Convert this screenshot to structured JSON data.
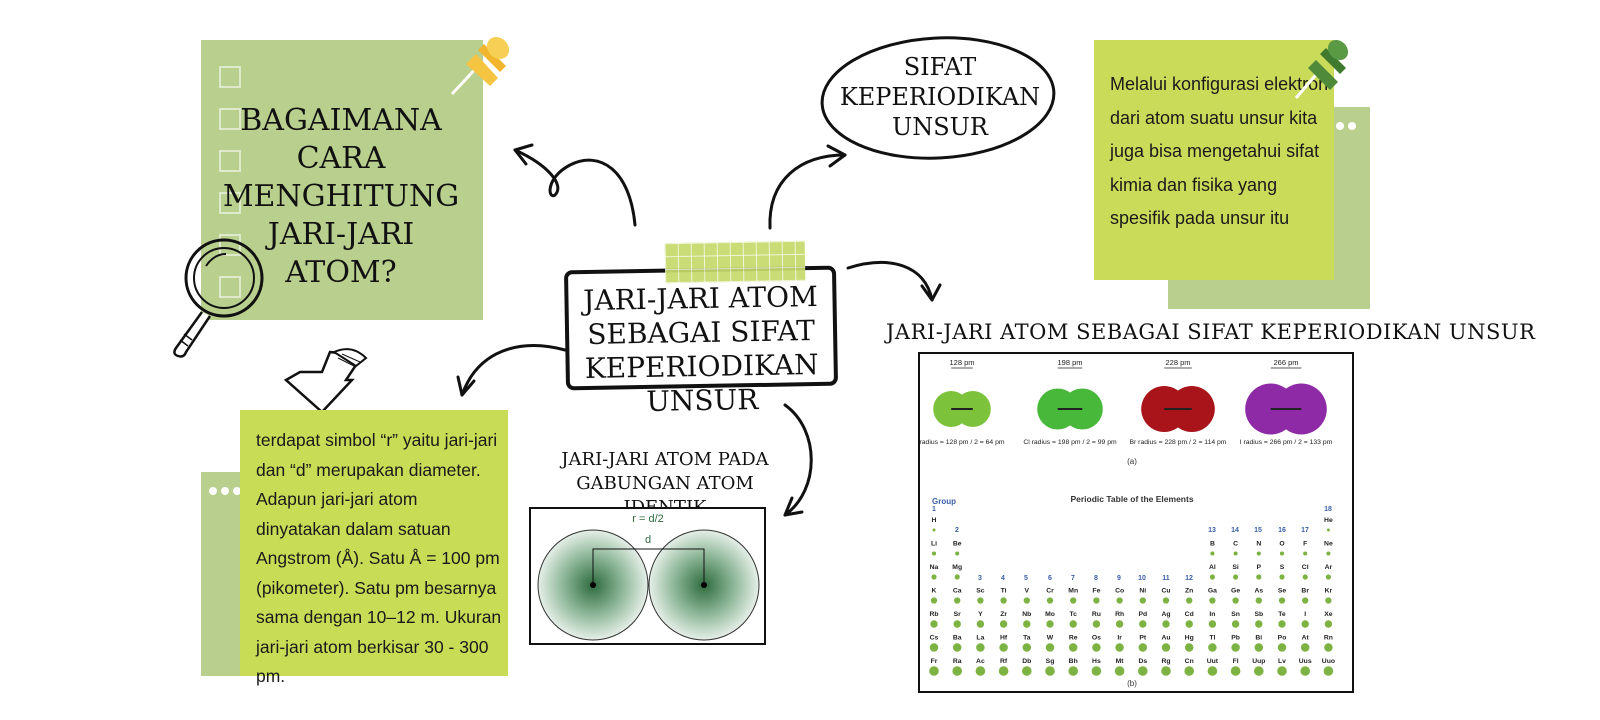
{
  "question_note": {
    "text": "BAGAIMANA CARA MENGHITUNG JARI-JARI ATOM?"
  },
  "center": {
    "title": "JARI-JARI ATOM SEBAGAI SIFAT KEPERIODIKAN UNSUR"
  },
  "oval": {
    "title": "SIFAT KEPERIODIKAN UNSUR"
  },
  "right_note": {
    "text": "Melalui konfigurasi elektron dari atom suatu unsur kita juga bisa mengetahui sifat kimia dan fisika yang spesifik pada unsur itu"
  },
  "periodic_section": {
    "heading": "JARI-JARI ATOM SEBAGAI SIFAT KEPERIODIKAN UNSUR",
    "molecules": [
      {
        "bond": "128 pm",
        "label": "radius = 128 pm / 2 = 64 pm",
        "color": "#7cc23a"
      },
      {
        "bond": "198 pm",
        "label": "Cl radius = 198 pm / 2 = 99 pm",
        "color": "#48b83a"
      },
      {
        "bond": "228 pm",
        "label": "Br radius = 228 pm / 2 = 114 pm",
        "color": "#a8141a"
      },
      {
        "bond": "266 pm",
        "label": "I radius = 266 pm / 2 = 133 pm",
        "color": "#8e2aa6"
      }
    ],
    "caption_a": "(a)",
    "table_title": "Periodic Table of the Elements",
    "group_label": "Group",
    "caption_b": "(b)",
    "rows": [
      [
        "H",
        "",
        "",
        "",
        "",
        "",
        "",
        "",
        "",
        "",
        "",
        "",
        "",
        "",
        "",
        "",
        "",
        "He"
      ],
      [
        "Li",
        "Be",
        "",
        "",
        "",
        "",
        "",
        "",
        "",
        "",
        "",
        "",
        "B",
        "C",
        "N",
        "O",
        "F",
        "Ne"
      ],
      [
        "Na",
        "Mg",
        "",
        "",
        "",
        "",
        "",
        "",
        "",
        "",
        "",
        "",
        "Al",
        "Si",
        "P",
        "S",
        "Cl",
        "Ar"
      ],
      [
        "K",
        "Ca",
        "Sc",
        "Ti",
        "V",
        "Cr",
        "Mn",
        "Fe",
        "Co",
        "Ni",
        "Cu",
        "Zn",
        "Ga",
        "Ge",
        "As",
        "Se",
        "Br",
        "Kr"
      ],
      [
        "Rb",
        "Sr",
        "Y",
        "Zr",
        "Nb",
        "Mo",
        "Tc",
        "Ru",
        "Rh",
        "Pd",
        "Ag",
        "Cd",
        "In",
        "Sn",
        "Sb",
        "Te",
        "I",
        "Xe"
      ],
      [
        "Cs",
        "Ba",
        "La",
        "Hf",
        "Ta",
        "W",
        "Re",
        "Os",
        "Ir",
        "Pt",
        "Au",
        "Hg",
        "Tl",
        "Pb",
        "Bi",
        "Po",
        "At",
        "Rn"
      ],
      [
        "Fr",
        "Ra",
        "Ac",
        "Rf",
        "Db",
        "Sg",
        "Bh",
        "Hs",
        "Mt",
        "Ds",
        "Rg",
        "Cn",
        "Uut",
        "Fl",
        "Uup",
        "Lv",
        "Uus",
        "Uuo"
      ]
    ],
    "group_numbers": [
      "1",
      "2",
      "3",
      "4",
      "5",
      "6",
      "7",
      "8",
      "9",
      "10",
      "11",
      "12",
      "13",
      "14",
      "15",
      "16",
      "17",
      "18"
    ]
  },
  "bottom_note": {
    "text": "terdapat simbol “r” yaitu jari-jari dan “d” merupakan diameter. Adapun jari-jari atom dinyatakan dalam satuan Angstrom (Å). Satu Å = 100 pm (pikometer). Satu pm besarnya sama dengan 10–12 m. Ukuran jari-jari atom berkisar 30 - 300 pm."
  },
  "diagram": {
    "heading": "JARI-JARI ATOM PADA GABUNGAN ATOM IDENTIK",
    "formula": "r = d/2",
    "d_label": "d"
  },
  "colors": {
    "note_green": "#b8cf8e",
    "note_lime": "#cadb5a",
    "pin_yellow": "#f5c542",
    "pin_green": "#4e8a3a"
  }
}
